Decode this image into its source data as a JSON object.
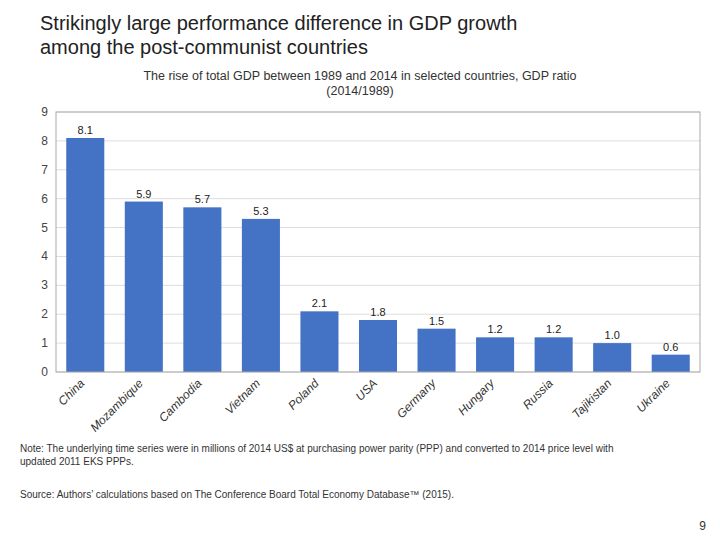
{
  "chart_data": {
    "type": "bar",
    "title": "Strikingly large performance difference in GDP growth\namong the post-communist countries",
    "subtitle": "The rise of total GDP between 1989 and 2014 in selected countries, GDP ratio\n(2014/1989)",
    "categories": [
      "China",
      "Mozambique",
      "Cambodia",
      "Vietnam",
      "Poland",
      "USA",
      "Germany",
      "Hungary",
      "Russia",
      "Tajikistan",
      "Ukraine"
    ],
    "values": [
      8.1,
      5.9,
      5.7,
      5.3,
      2.1,
      1.8,
      1.5,
      1.2,
      1.2,
      1.0,
      0.6
    ],
    "value_labels": [
      "8.1",
      "5.9",
      "5.7",
      "5.3",
      "2.1",
      "1.8",
      "1.5",
      "1.2",
      "1.2",
      "1.0",
      "0.6"
    ],
    "color": "#4472C4",
    "ylim": [
      0,
      9
    ],
    "yticks": [
      0,
      1,
      2,
      3,
      4,
      5,
      6,
      7,
      8,
      9
    ],
    "grid": true,
    "data_labels": true,
    "note": "Note: The underlying time series were in millions of 2014 US$ at purchasing power parity (PPP) and converted to 2014 price level with\nupdated 2011 EKS PPPs.",
    "source": "Source: Authors’ calculations based on The Conference Board Total Economy Database™ (2015).",
    "page_number": "9"
  }
}
